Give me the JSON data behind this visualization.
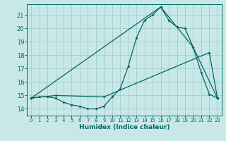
{
  "xlabel": "Humidex (Indice chaleur)",
  "bg_color": "#c8e8e8",
  "grid_color": "#a8d0d0",
  "line_color": "#006666",
  "xlim": [
    -0.5,
    23.5
  ],
  "ylim": [
    13.5,
    21.8
  ],
  "yticks": [
    14,
    15,
    16,
    17,
    18,
    19,
    20,
    21
  ],
  "xticks": [
    0,
    1,
    2,
    3,
    4,
    5,
    6,
    7,
    8,
    9,
    10,
    11,
    12,
    13,
    14,
    15,
    16,
    17,
    18,
    19,
    20,
    21,
    22,
    23
  ],
  "series1_x": [
    0,
    1,
    2,
    3,
    4,
    5,
    6,
    7,
    8,
    9,
    10,
    11,
    12,
    13,
    14,
    15,
    16,
    17,
    18,
    19,
    20,
    21,
    22,
    23
  ],
  "series1_y": [
    14.8,
    14.9,
    14.9,
    14.8,
    14.5,
    14.3,
    14.2,
    14.0,
    14.0,
    14.2,
    14.9,
    15.5,
    17.2,
    19.3,
    20.6,
    21.0,
    21.6,
    20.6,
    20.1,
    20.0,
    18.6,
    16.7,
    15.1,
    14.8
  ],
  "series2_x": [
    0,
    3,
    9,
    22,
    23
  ],
  "series2_y": [
    14.8,
    15.0,
    14.9,
    18.2,
    14.8
  ],
  "series3_x": [
    0,
    16,
    20,
    23
  ],
  "series3_y": [
    14.8,
    21.6,
    18.6,
    14.8
  ]
}
